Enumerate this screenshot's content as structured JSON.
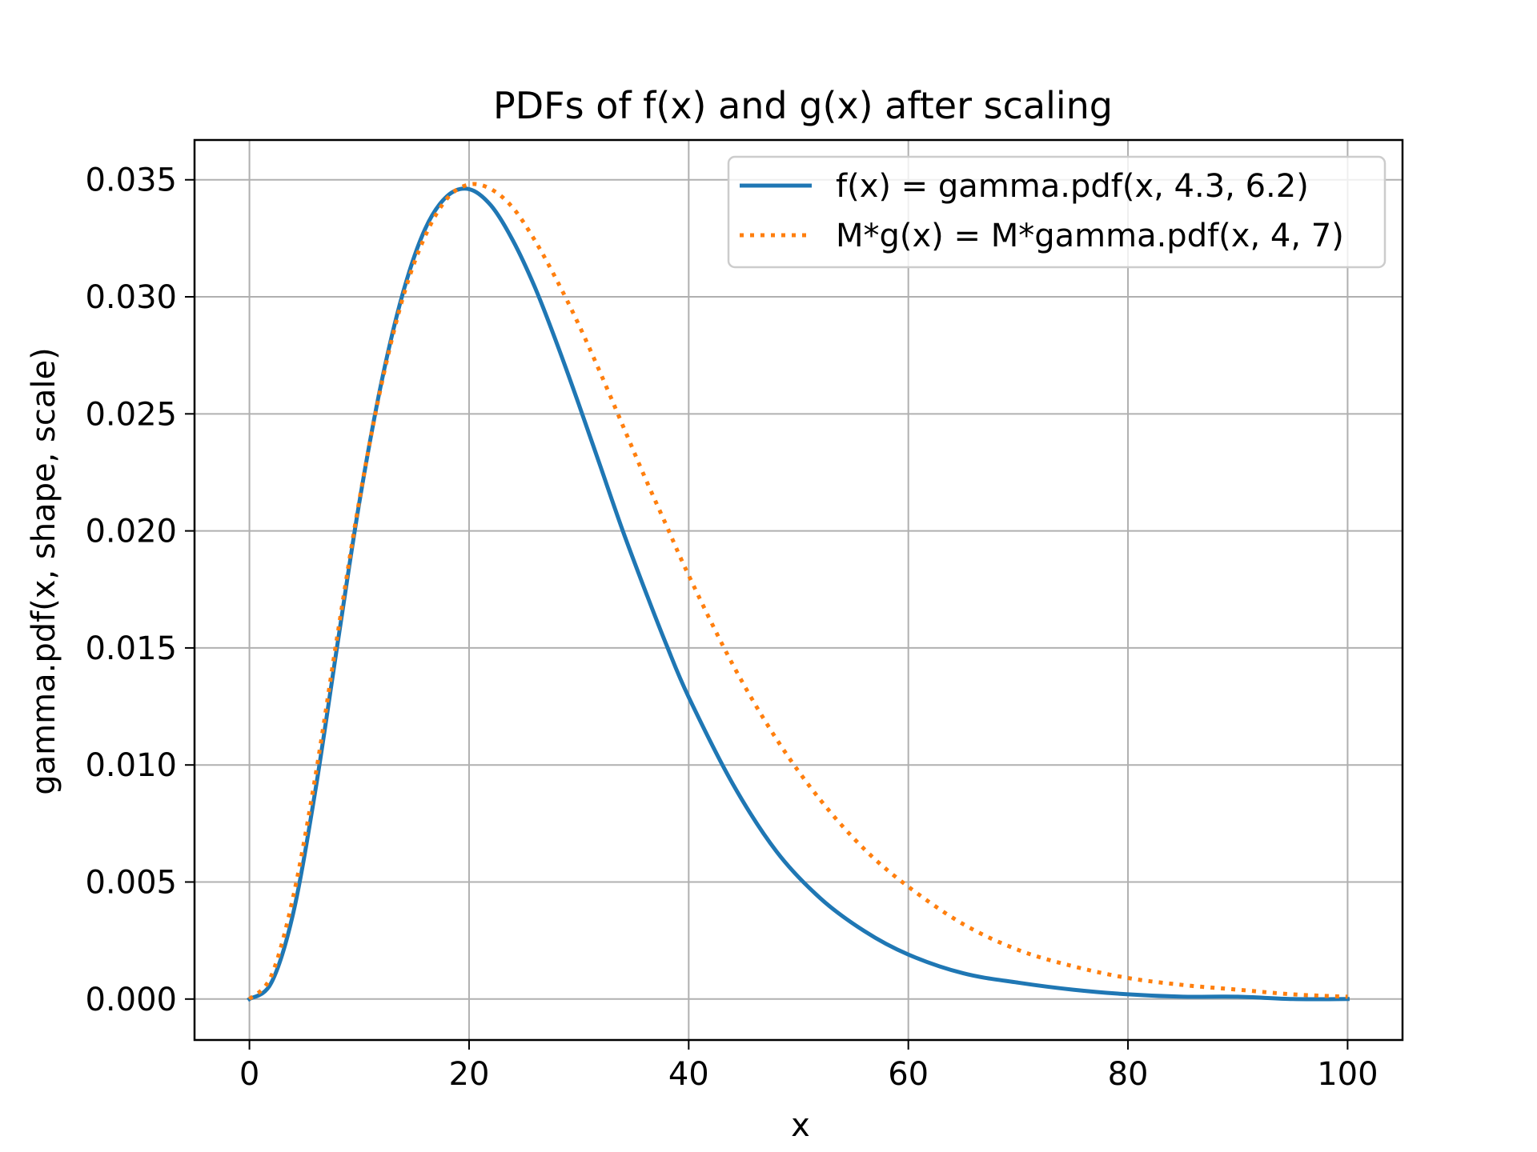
{
  "chart_data": {
    "type": "line",
    "title": "PDFs of f(x) and g(x) after scaling",
    "xlabel": "x",
    "ylabel": "gamma.pdf(x, shape, scale)",
    "xlim": [
      -5,
      105
    ],
    "ylim": [
      -0.00175,
      0.0367
    ],
    "xticks": [
      0,
      20,
      40,
      60,
      80,
      100
    ],
    "xtick_labels": [
      "0",
      "20",
      "40",
      "60",
      "80",
      "100"
    ],
    "yticks": [
      0,
      0.005,
      0.01,
      0.015,
      0.02,
      0.025,
      0.03,
      0.035
    ],
    "ytick_labels": [
      "0.000",
      "0.005",
      "0.010",
      "0.015",
      "0.020",
      "0.025",
      "0.030",
      "0.035"
    ],
    "grid": true,
    "legend_position": "top-right",
    "x": [
      0,
      2,
      4,
      6,
      8,
      10,
      12,
      14,
      16,
      18,
      20,
      22,
      24,
      26,
      28,
      30,
      32,
      34,
      36,
      38,
      40,
      44,
      48,
      52,
      56,
      60,
      65,
      70,
      75,
      80,
      85,
      90,
      95,
      100
    ],
    "series": [
      {
        "name": "f(x) = gamma.pdf(x, 4.3, 6.2)",
        "color": "#1f77b4",
        "style": "solid",
        "values": [
          0.0,
          0.0007,
          0.0037,
          0.0089,
          0.0151,
          0.0212,
          0.0263,
          0.0302,
          0.0329,
          0.0343,
          0.0346,
          0.0339,
          0.0324,
          0.0304,
          0.028,
          0.0254,
          0.0227,
          0.02,
          0.0175,
          0.0151,
          0.0129,
          0.0092,
          0.0063,
          0.0043,
          0.0029,
          0.0019,
          0.0011,
          0.0007,
          0.0004,
          0.0002,
          0.0001,
          0.0001,
          0.0,
          0.0
        ]
      },
      {
        "name": "M*g(x) = M*gamma.pdf(x, 4, 7)",
        "color": "#ff7f0e",
        "style": "dotted",
        "values": [
          0.0,
          0.001,
          0.0044,
          0.0095,
          0.0155,
          0.0213,
          0.0262,
          0.03,
          0.0326,
          0.0342,
          0.0348,
          0.0346,
          0.0338,
          0.0324,
          0.0307,
          0.0288,
          0.0267,
          0.0245,
          0.0223,
          0.0202,
          0.0181,
          0.0143,
          0.0111,
          0.0085,
          0.0064,
          0.0048,
          0.0032,
          0.0021,
          0.0014,
          0.0009,
          0.0006,
          0.0004,
          0.0002,
          0.0001
        ]
      }
    ]
  }
}
